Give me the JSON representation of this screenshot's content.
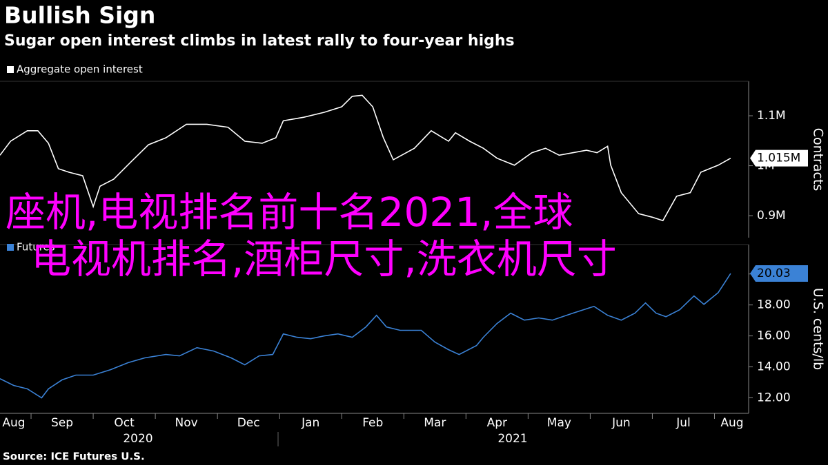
{
  "header": {
    "title": "Bullish Sign",
    "subtitle": "Sugar open interest climbs in latest rally to four-year highs"
  },
  "source": "Source: ICE Futures U.S.",
  "overlay": [
    "座机,电视排名前十名2021,全球",
    "电视机排名,酒柜尺寸,洗衣机尺寸"
  ],
  "year_labels": [
    "2020",
    "2021"
  ],
  "chart_data": [
    {
      "type": "line",
      "axis_title": "Contracts",
      "last_value_label": "1.015M",
      "xlim": [
        0.5,
        12.55
      ],
      "ylim": [
        856000,
        1169000
      ],
      "yticks": [
        {
          "value": 900000,
          "label": "0.9M"
        },
        {
          "value": 1000000,
          "label": "1M"
        },
        {
          "value": 1100000,
          "label": "1.1M"
        }
      ],
      "series": [
        {
          "name": "Aggregate open interest",
          "color": "#ffffff",
          "x": [
            0.5,
            0.67,
            0.94,
            1.11,
            1.28,
            1.44,
            1.61,
            1.83,
            2.0,
            2.11,
            2.33,
            2.61,
            2.89,
            3.17,
            3.5,
            3.83,
            4.17,
            4.44,
            4.72,
            4.94,
            5.06,
            5.39,
            5.72,
            6.0,
            6.17,
            6.33,
            6.5,
            6.67,
            6.83,
            7.17,
            7.44,
            7.72,
            7.83,
            8.06,
            8.28,
            8.5,
            8.78,
            9.06,
            9.28,
            9.5,
            9.72,
            9.94,
            10.11,
            10.28,
            10.33,
            10.5,
            10.78,
            11.0,
            11.17,
            11.39,
            11.61,
            11.78,
            12.06,
            12.26
          ],
          "values": [
            1021000,
            1049000,
            1070000,
            1070000,
            1045000,
            994000,
            987000,
            980000,
            918000,
            959000,
            973000,
            1008000,
            1042000,
            1056000,
            1083000,
            1083000,
            1077000,
            1049000,
            1045000,
            1056000,
            1090000,
            1097000,
            1107000,
            1118000,
            1139000,
            1141000,
            1118000,
            1056000,
            1012000,
            1035000,
            1070000,
            1049000,
            1066000,
            1049000,
            1035000,
            1015000,
            1001000,
            1026000,
            1035000,
            1021000,
            1026000,
            1031000,
            1026000,
            1039000,
            1001000,
            946000,
            904000,
            897000,
            890000,
            939000,
            946000,
            987000,
            1001000,
            1015000
          ]
        }
      ]
    },
    {
      "type": "line",
      "axis_title": "U.S. cents/lb",
      "last_value_label": "20.03",
      "xlim": [
        0.5,
        12.55
      ],
      "ylim": [
        11.0,
        21.9
      ],
      "yticks": [
        {
          "value": 12,
          "label": "12.00"
        },
        {
          "value": 14,
          "label": "14.00"
        },
        {
          "value": 16,
          "label": "16.00"
        },
        {
          "value": 18,
          "label": "18.00"
        },
        {
          "value": 20,
          "label": "20.00"
        }
      ],
      "xticks": [
        {
          "value": 0,
          "label": "Aug"
        },
        {
          "value": 1,
          "label": "Sep"
        },
        {
          "value": 2,
          "label": "Oct"
        },
        {
          "value": 3,
          "label": "Nov"
        },
        {
          "value": 4,
          "label": "Dec"
        },
        {
          "value": 5,
          "label": "Jan"
        },
        {
          "value": 6,
          "label": "Feb"
        },
        {
          "value": 7,
          "label": "Mar"
        },
        {
          "value": 8,
          "label": "Apr"
        },
        {
          "value": 9,
          "label": "May"
        },
        {
          "value": 10,
          "label": "Jun"
        },
        {
          "value": 11,
          "label": "Jul"
        },
        {
          "value": 12,
          "label": "Aug"
        }
      ],
      "series": [
        {
          "name": "Futures",
          "color": "#3b82d6",
          "x": [
            0.5,
            0.72,
            0.94,
            1.17,
            1.28,
            1.5,
            1.72,
            2.0,
            2.28,
            2.56,
            2.83,
            3.17,
            3.39,
            3.67,
            3.94,
            4.22,
            4.44,
            4.67,
            4.89,
            5.06,
            5.28,
            5.5,
            5.72,
            5.94,
            6.17,
            6.39,
            6.56,
            6.72,
            6.94,
            7.28,
            7.5,
            7.72,
            7.89,
            8.17,
            8.28,
            8.5,
            8.72,
            8.94,
            9.17,
            9.39,
            9.72,
            10.06,
            10.28,
            10.5,
            10.72,
            10.89,
            11.06,
            11.22,
            11.44,
            11.67,
            11.83,
            12.06,
            12.17,
            12.26
          ],
          "values": [
            13.24,
            12.8,
            12.58,
            12.0,
            12.58,
            13.16,
            13.47,
            13.47,
            13.82,
            14.27,
            14.58,
            14.8,
            14.71,
            15.24,
            15.02,
            14.58,
            14.13,
            14.71,
            14.8,
            16.13,
            15.91,
            15.82,
            16.0,
            16.13,
            15.91,
            16.58,
            17.33,
            16.58,
            16.36,
            16.36,
            15.6,
            15.11,
            14.8,
            15.38,
            15.91,
            16.8,
            17.47,
            17.02,
            17.16,
            17.02,
            17.47,
            17.91,
            17.33,
            17.02,
            17.47,
            18.13,
            17.47,
            17.24,
            17.69,
            18.58,
            18.04,
            18.8,
            19.47,
            20.03
          ]
        }
      ]
    }
  ]
}
